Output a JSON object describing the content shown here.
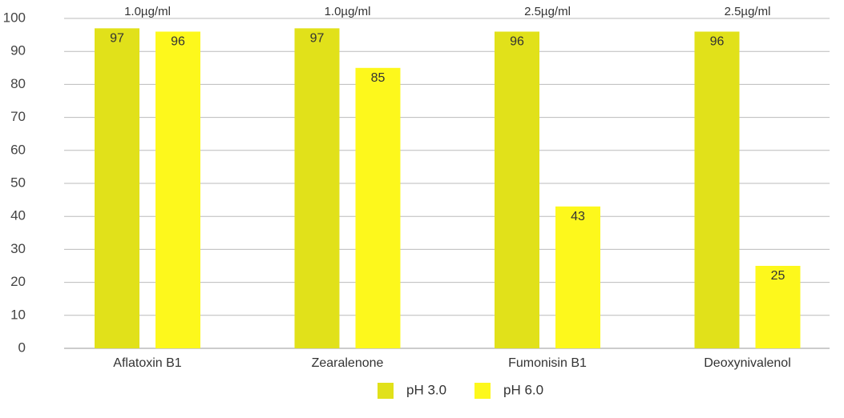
{
  "chart_data": {
    "type": "bar",
    "categories": [
      "Aflatoxin B1",
      "Zearalenone",
      "Fumonisin B1",
      "Deoxynivalenol"
    ],
    "annotations": [
      "1.0µg/ml",
      "1.0µg/ml",
      "2.5µg/ml",
      "2.5µg/ml"
    ],
    "series": [
      {
        "name": "pH 3.0",
        "color": "#e1e11a",
        "values": [
          97,
          97,
          96,
          96
        ]
      },
      {
        "name": "pH 6.0",
        "color": "#fdf81c",
        "values": [
          96,
          85,
          43,
          25
        ]
      }
    ],
    "ylim": [
      0,
      100
    ],
    "yticks": [
      0,
      10,
      20,
      30,
      40,
      50,
      60,
      70,
      80,
      90,
      100
    ],
    "grid": true,
    "legend": "bottom"
  }
}
